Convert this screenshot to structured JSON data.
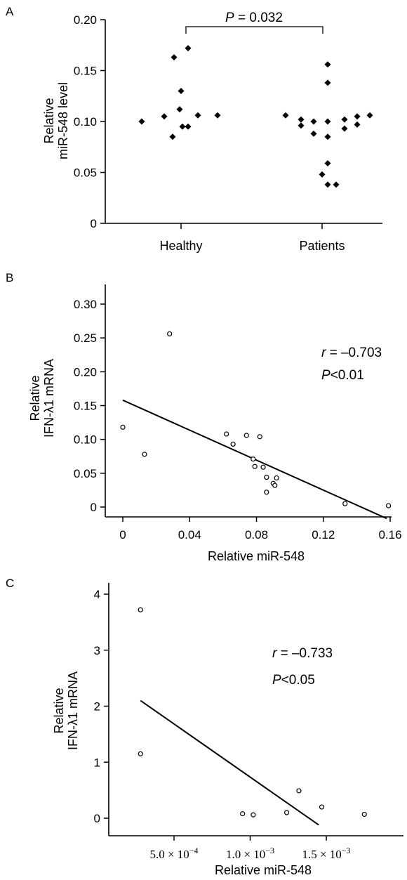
{
  "chart_data": [
    {
      "panel_label": "A",
      "type": "scatter",
      "ylabel_lines": [
        "Relative",
        "miR-548 level"
      ],
      "categories": [
        "Healthy",
        "Patients"
      ],
      "ylim": [
        0,
        0.2
      ],
      "yticks": [
        0,
        0.05,
        0.1,
        0.15,
        0.2
      ],
      "ytick_labels": [
        "0",
        "0.05",
        "0.10",
        "0.15",
        "0.20"
      ],
      "significance": {
        "p_italic": "P",
        "rest": " = 0.032"
      },
      "marker": "filled-diamond",
      "series": [
        {
          "category": "Healthy",
          "offsets": [
            -0.28,
            -0.12,
            -0.06,
            -0.05,
            -0.01,
            0.0,
            0.01,
            0.05,
            0.05,
            0.12,
            0.26
          ],
          "values": [
            0.1,
            0.105,
            0.085,
            0.163,
            0.112,
            0.13,
            0.095,
            0.172,
            0.095,
            0.106,
            0.106
          ]
        },
        {
          "category": "Patients",
          "offsets": [
            -0.26,
            -0.15,
            -0.15,
            -0.06,
            -0.06,
            0.0,
            0.04,
            0.04,
            0.04,
            0.04,
            0.04,
            0.04,
            0.1,
            0.16,
            0.16,
            0.25,
            0.25,
            0.34
          ],
          "values": [
            0.106,
            0.102,
            0.096,
            0.1,
            0.088,
            0.048,
            0.156,
            0.138,
            0.1,
            0.085,
            0.059,
            0.038,
            0.038,
            0.102,
            0.093,
            0.105,
            0.097,
            0.106
          ]
        }
      ]
    },
    {
      "panel_label": "B",
      "type": "scatter",
      "xlabel": "Relative miR-548",
      "ylabel_lines": [
        "Relative",
        "IFN-λ1 mRNA"
      ],
      "xlim": [
        0,
        0.16
      ],
      "ylim": [
        0,
        0.3
      ],
      "xticks": [
        0,
        0.04,
        0.08,
        0.12,
        0.16
      ],
      "xtick_labels": [
        "0",
        "0.04",
        "0.08",
        "0.12",
        "0.16"
      ],
      "yticks": [
        0,
        0.05,
        0.1,
        0.15,
        0.2,
        0.25,
        0.3
      ],
      "ytick_labels": [
        "0",
        "0.05",
        "0.10",
        "0.15",
        "0.20",
        "0.25",
        "0.30"
      ],
      "marker": "open-circle",
      "points": [
        [
          0.0,
          0.118
        ],
        [
          0.013,
          0.078
        ],
        [
          0.028,
          0.256
        ],
        [
          0.062,
          0.108
        ],
        [
          0.066,
          0.093
        ],
        [
          0.074,
          0.106
        ],
        [
          0.078,
          0.071
        ],
        [
          0.079,
          0.06
        ],
        [
          0.082,
          0.104
        ],
        [
          0.084,
          0.059
        ],
        [
          0.086,
          0.044
        ],
        [
          0.086,
          0.022
        ],
        [
          0.09,
          0.035
        ],
        [
          0.091,
          0.032
        ],
        [
          0.092,
          0.043
        ],
        [
          0.133,
          0.005
        ],
        [
          0.159,
          0.002
        ]
      ],
      "trendline": {
        "x": [
          0.0,
          0.158
        ],
        "y": [
          0.158,
          -0.017
        ]
      },
      "stats": {
        "r_italic": "r",
        "r_rest": " = –0.703",
        "p_italic": "P",
        "p_rest": "<0.01"
      }
    },
    {
      "panel_label": "C",
      "type": "scatter",
      "xlabel": "Relative miR-548",
      "ylabel_lines": [
        "Relative",
        "IFN-λ1 mRNA"
      ],
      "xlim": [
        0.00013,
        0.00182
      ],
      "ylim": [
        -0.2,
        4.2
      ],
      "xticks": [
        0.0005,
        0.001,
        0.0015
      ],
      "xtick_labels": [
        {
          "mant": "5.0 × 10",
          "exp": "−4"
        },
        {
          "mant": "1.0 × 10",
          "exp": "−3"
        },
        {
          "mant": "1.5 × 10",
          "exp": "−3"
        }
      ],
      "yticks": [
        0,
        1,
        2,
        3,
        4
      ],
      "ytick_labels": [
        "0",
        "1",
        "2",
        "3",
        "4"
      ],
      "marker": "open-circle",
      "points": [
        [
          0.00028,
          3.72
        ],
        [
          0.00028,
          1.15
        ],
        [
          0.00095,
          0.08
        ],
        [
          0.00102,
          0.06
        ],
        [
          0.00124,
          0.1
        ],
        [
          0.00132,
          0.49
        ],
        [
          0.00147,
          0.2
        ],
        [
          0.00175,
          0.07
        ]
      ],
      "trendline": {
        "x": [
          0.00028,
          0.00145
        ],
        "y": [
          2.1,
          -0.12
        ]
      },
      "stats": {
        "r_italic": "r",
        "r_rest": " = –0.733",
        "p_italic": "P",
        "p_rest": "<0.05"
      }
    }
  ]
}
